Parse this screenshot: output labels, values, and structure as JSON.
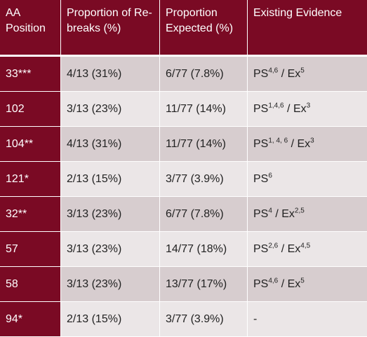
{
  "header": {
    "col1": "AA Position",
    "col2": "Proportion of Re-breaks (%)",
    "col3": "Proportion Expected (%)",
    "col4": "Existing Evidence"
  },
  "rows": [
    {
      "position": "33***",
      "rebreaks": "4/13 (31%)",
      "expected": "6/77 (7.8%)",
      "ps_sup": "4,6",
      "ex_sup": "5",
      "slash": " / "
    },
    {
      "position": "102",
      "rebreaks": "3/13 (23%)",
      "expected": "11/77 (14%)",
      "ps_sup": "1,4,6",
      "ex_sup": "3",
      "slash": " / "
    },
    {
      "position": "104**",
      "rebreaks": "4/13 (31%)",
      "expected": "11/77 (14%)",
      "ps_sup": "1, 4, 6",
      "ex_sup": "3",
      "slash": " / "
    },
    {
      "position": "121*",
      "rebreaks": "2/13 (15%)",
      "expected": "3/77 (3.9%)",
      "ps_sup": "6"
    },
    {
      "position": "32**",
      "rebreaks": "3/13 (23%)",
      "expected": "6/77 (7.8%)",
      "ps_sup": "4",
      "ex_sup": "2,5",
      "slash": " / "
    },
    {
      "position": "57",
      "rebreaks": "3/13 (23%)",
      "expected": "14/77 (18%)",
      "ps_sup": "2,6",
      "ex_sup": "4,5",
      "slash": " / "
    },
    {
      "position": "58",
      "rebreaks": "3/13 (23%)",
      "expected": "13/77 (17%)",
      "ps_sup": "4,6",
      "ex_sup": "5",
      "slash": " / "
    },
    {
      "position": "94*",
      "rebreaks": "2/13 (15%)",
      "expected": "3/77 (3.9%)",
      "none": "-"
    }
  ],
  "labels": {
    "ps": "PS",
    "ex": "Ex"
  }
}
